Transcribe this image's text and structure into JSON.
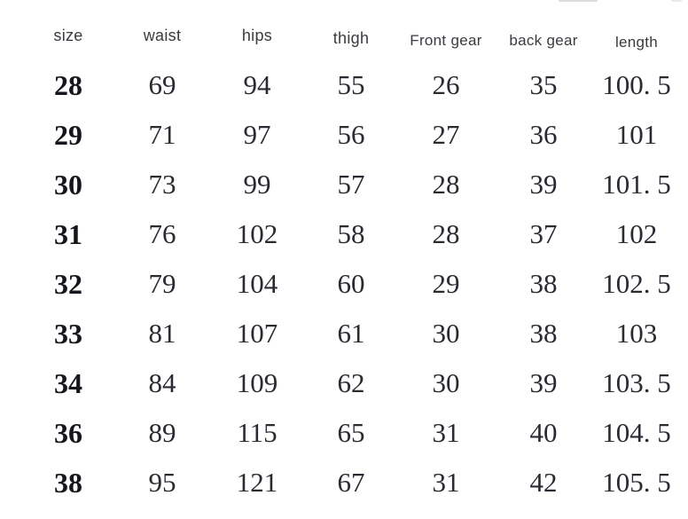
{
  "chart_data": {
    "type": "table",
    "title": "",
    "columns": [
      "size",
      "waist",
      "hips",
      "thigh",
      "Front gear",
      "back gear",
      "length"
    ],
    "rows": [
      [
        "28",
        "69",
        "94",
        "55",
        "26",
        "35",
        "100. 5"
      ],
      [
        "29",
        "71",
        "97",
        "56",
        "27",
        "36",
        "101"
      ],
      [
        "30",
        "73",
        "99",
        "57",
        "28",
        "39",
        "101. 5"
      ],
      [
        "31",
        "76",
        "102",
        "58",
        "28",
        "37",
        "102"
      ],
      [
        "32",
        "79",
        "104",
        "60",
        "29",
        "38",
        "102. 5"
      ],
      [
        "33",
        "81",
        "107",
        "61",
        "30",
        "38",
        "103"
      ],
      [
        "34",
        "84",
        "109",
        "62",
        "30",
        "39",
        "103. 5"
      ],
      [
        "36",
        "89",
        "115",
        "65",
        "31",
        "40",
        "104. 5"
      ],
      [
        "38",
        "95",
        "121",
        "67",
        "31",
        "42",
        "105. 5"
      ]
    ],
    "layout": {
      "legend": "none",
      "grid": "off",
      "header_position": "top"
    }
  },
  "colors": {
    "background": "#ffffff",
    "header_text": "#3a3a40",
    "cell_text": "#2a2a33",
    "size_column_text": "#16161c"
  }
}
